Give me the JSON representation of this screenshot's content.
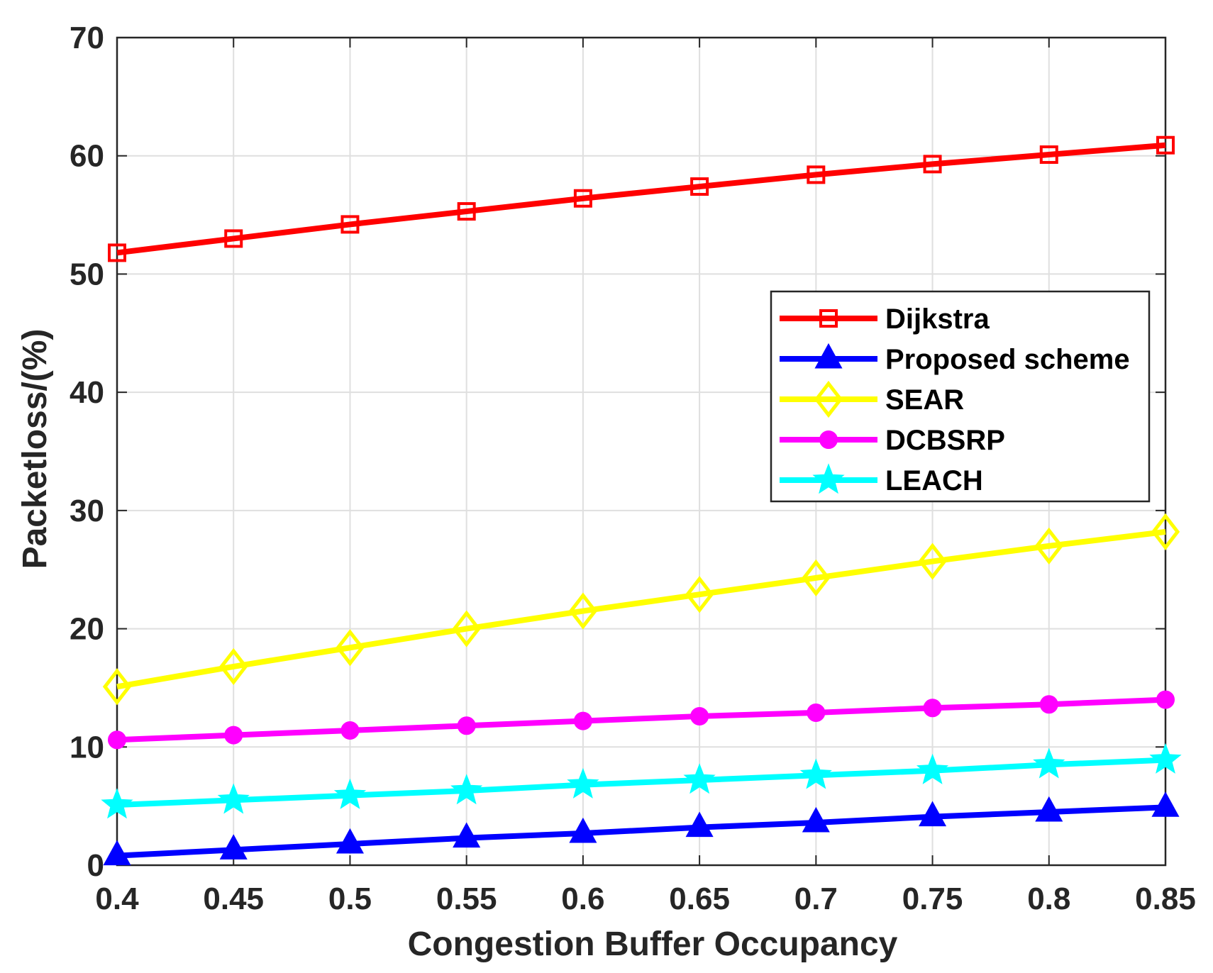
{
  "chart_data": {
    "type": "line",
    "title": "",
    "xlabel": "Congestion Buffer Occupancy",
    "ylabel": "Packetloss/(%)",
    "x": [
      0.4,
      0.45,
      0.5,
      0.55,
      0.6,
      0.65,
      0.7,
      0.75,
      0.8,
      0.85
    ],
    "x_tick_labels": [
      "0.4",
      "0.45",
      "0.5",
      "0.55",
      "0.6",
      "0.65",
      "0.7",
      "0.75",
      "0.8",
      "0.85"
    ],
    "y_ticks": [
      0,
      10,
      20,
      30,
      40,
      50,
      60,
      70
    ],
    "y_tick_labels": [
      "0",
      "10",
      "20",
      "30",
      "40",
      "50",
      "60",
      "70"
    ],
    "xlim": [
      0.4,
      0.85
    ],
    "ylim": [
      0,
      70
    ],
    "grid": true,
    "legend_position": "right-center",
    "series": [
      {
        "name": "Dijkstra",
        "color": "#ff0000",
        "marker": "square",
        "values": [
          51.8,
          53.0,
          54.2,
          55.3,
          56.4,
          57.4,
          58.4,
          59.3,
          60.1,
          60.9
        ]
      },
      {
        "name": "Proposed scheme",
        "color": "#0000ff",
        "marker": "triangle",
        "values": [
          0.8,
          1.3,
          1.8,
          2.3,
          2.7,
          3.2,
          3.6,
          4.1,
          4.5,
          4.9
        ]
      },
      {
        "name": "SEAR",
        "color": "#ffff00",
        "marker": "diamond",
        "values": [
          15.1,
          16.8,
          18.4,
          20.0,
          21.5,
          22.9,
          24.3,
          25.7,
          27.0,
          28.2
        ]
      },
      {
        "name": "DCBSRP",
        "color": "#ff00ff",
        "marker": "circle",
        "values": [
          10.6,
          11.0,
          11.4,
          11.8,
          12.2,
          12.6,
          12.9,
          13.3,
          13.6,
          14.0
        ]
      },
      {
        "name": "LEACH",
        "color": "#00ffff",
        "marker": "star",
        "values": [
          5.1,
          5.5,
          5.9,
          6.3,
          6.8,
          7.2,
          7.6,
          8.0,
          8.5,
          8.9
        ]
      }
    ]
  }
}
